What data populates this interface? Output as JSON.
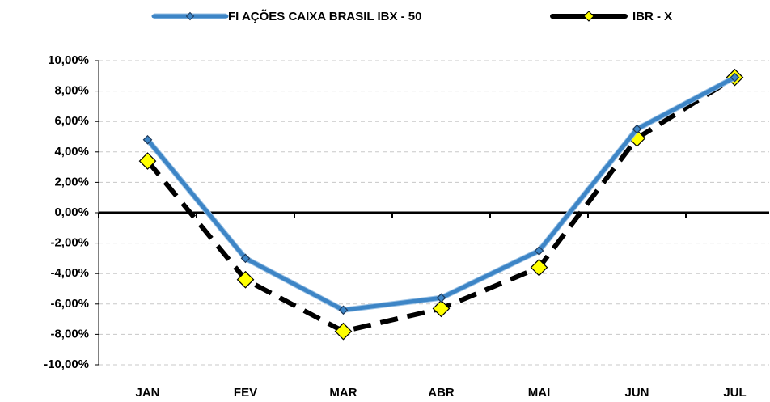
{
  "chart_data": {
    "type": "line",
    "categories": [
      "JAN",
      "FEV",
      "MAR",
      "ABR",
      "MAI",
      "JUN",
      "JUL"
    ],
    "series": [
      {
        "name": "FI AÇÕES CAIXA BRASIL IBX - 50",
        "color": "#3d85c6",
        "values": [
          4.8,
          -3.0,
          -6.4,
          -5.6,
          -2.5,
          5.5,
          8.9
        ]
      },
      {
        "name": "IBR - X",
        "color": "#000000",
        "values": [
          3.4,
          -4.4,
          -7.8,
          -6.3,
          -3.6,
          4.9,
          8.9
        ]
      }
    ],
    "ylim": [
      -10,
      10
    ],
    "yticks": [
      {
        "value": -10,
        "label": "-10,00%"
      },
      {
        "value": -8,
        "label": "-8,00%"
      },
      {
        "value": -6,
        "label": "-6,00%"
      },
      {
        "value": -4,
        "label": "-4,00%"
      },
      {
        "value": -2,
        "label": "-2,00%"
      },
      {
        "value": 0,
        "label": "0,00%"
      },
      {
        "value": 2,
        "label": "2,00%"
      },
      {
        "value": 4,
        "label": "4,00%"
      },
      {
        "value": 6,
        "label": "6,00%"
      },
      {
        "value": 8,
        "label": "8,00%"
      },
      {
        "value": 10,
        "label": "10,00%"
      }
    ],
    "grid": true,
    "legend": "top"
  }
}
